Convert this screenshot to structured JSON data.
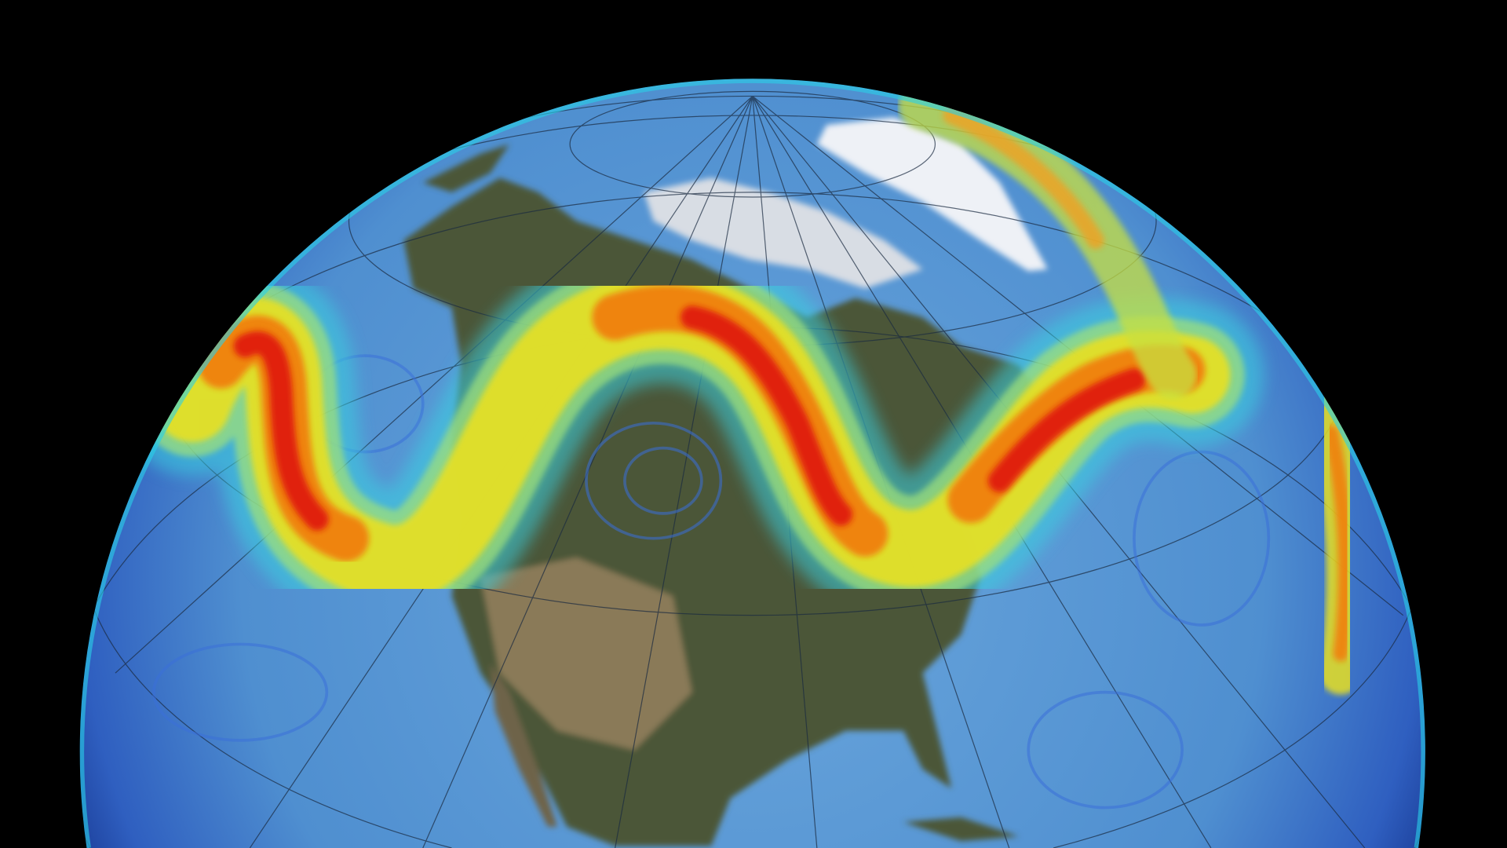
{
  "colors": {
    "background": "#000000",
    "ocean": "#4f8fd0",
    "ocean_edge": "#1c3f9a",
    "land": "#4f5a3a",
    "land_dry": "#8a7a5a",
    "ice": "#f2f4f8",
    "jet_slow": "#3ad0e0",
    "jet_mid": "#e8e020",
    "jet_fast": "#f08010",
    "jet_core": "#e01a0a",
    "graticule": "#1a2a40"
  }
}
